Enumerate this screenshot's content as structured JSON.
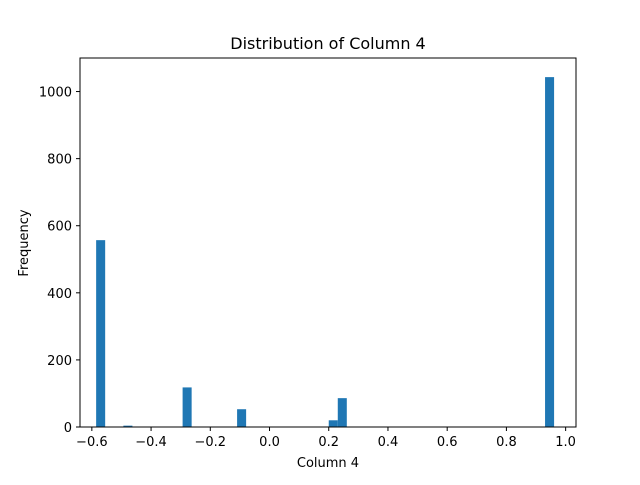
{
  "chart_data": {
    "type": "bar",
    "title": "Distribution of Column 4",
    "xlabel": "Column 4",
    "ylabel": "Frequency",
    "xlim": [
      -0.64,
      1.035
    ],
    "ylim": [
      0,
      1100
    ],
    "x_ticks": [
      -0.6,
      -0.4,
      -0.2,
      0.0,
      0.2,
      0.4,
      0.6,
      0.8,
      1.0
    ],
    "x_tick_labels": [
      "−0.6",
      "−0.4",
      "−0.2",
      "0.0",
      "0.2",
      "0.4",
      "0.6",
      "0.8",
      "1.0"
    ],
    "y_ticks": [
      0,
      200,
      400,
      600,
      800,
      1000
    ],
    "y_tick_labels": [
      "0",
      "200",
      "400",
      "600",
      "800",
      "1000"
    ],
    "bin_width": 0.0305,
    "bins": [
      {
        "x": -0.5855,
        "count": 557
      },
      {
        "x": -0.4935,
        "count": 4
      },
      {
        "x": -0.2935,
        "count": 118
      },
      {
        "x": -0.1095,
        "count": 53
      },
      {
        "x": 0.2,
        "count": 20
      },
      {
        "x": 0.2305,
        "count": 86
      },
      {
        "x": 0.9305,
        "count": 1043
      }
    ],
    "bar_color": "#1f77b4",
    "grid": false,
    "legend": "none"
  }
}
